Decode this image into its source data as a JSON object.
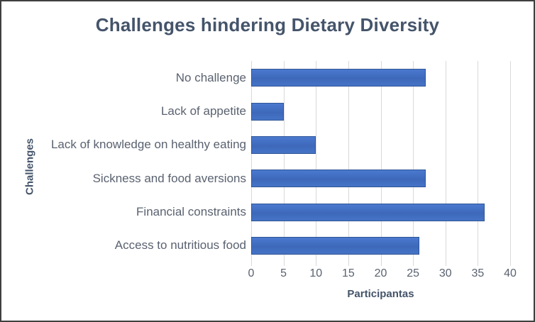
{
  "chart_data": {
    "type": "bar",
    "orientation": "horizontal",
    "title": "Challenges hindering Dietary Diversity",
    "categories": [
      "No challenge",
      "Lack of appetite",
      "Lack of knowledge on healthy eating",
      "Sickness and food aversions",
      "Financial constraints",
      "Access to nutritious food"
    ],
    "values": [
      27,
      5,
      10,
      27,
      36,
      26
    ],
    "xlabel": "Participantas",
    "ylabel": "Challenges",
    "xlim": [
      0,
      40
    ],
    "xticks": [
      0,
      5,
      10,
      15,
      20,
      25,
      30,
      35,
      40
    ],
    "grid": "vertical",
    "legend": "none",
    "colors": {
      "bar_fill": "#4472C4",
      "bar_border": "#2F5597",
      "gridline": "#D9D9D9",
      "title_text": "#44546A",
      "axis_title_text": "#44546A",
      "tick_label_text": "#5A6270",
      "category_label_text": "#5A6270",
      "frame_border": "#3F3F3F",
      "background": "#FFFFFF"
    }
  }
}
